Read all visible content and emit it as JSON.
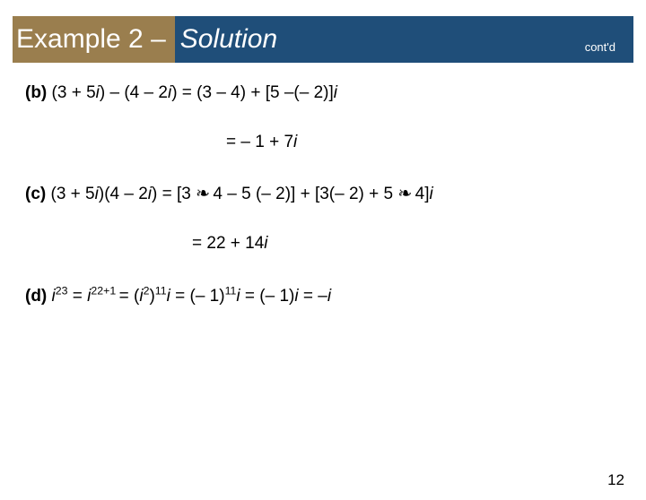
{
  "title": {
    "left": "Example 2 – ",
    "right": "Solution",
    "contd": "cont'd",
    "left_bg": "#9a7e4e",
    "right_bg": "#1f4e79",
    "text_color": "#ffffff",
    "font_size": 30
  },
  "lines": {
    "b_label": "(b)",
    "b1_p1": " (3 + 5",
    "b1_p2": ") – (4 – 2",
    "b1_p3": ") = (3 – 4) + [5 –(– 2)]",
    "b2_p1": "= – 1 + 7",
    "c_label": "(c)",
    "c1_p1": " (3 + 5",
    "c1_p2": ")(4 – 2",
    "c1_p3": ") = [3 ",
    "c1_p4": " 4 – 5 (– 2)] + [3(– 2) + 5 ",
    "c1_p5": " 4]",
    "c2_p1": "= 22 + 14",
    "d_label": "(d)",
    "d_exp1": "23",
    "d_eq1": " = ",
    "d_exp2": "22+1 ",
    "d_eq2": "= (",
    "d_exp3": "2",
    "d_p3": ")",
    "d_exp4": "11",
    "d_eq3": " = (– 1)",
    "d_eq4": " = (– 1)",
    "d_eq5": "  = –",
    "i": "i",
    "dot": "❧"
  },
  "slide_number": "12",
  "body": {
    "font_size": 19,
    "text_color": "#000000",
    "background": "#ffffff"
  }
}
